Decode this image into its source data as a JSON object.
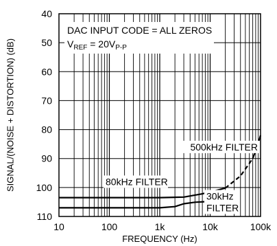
{
  "chart_data": {
    "type": "line",
    "xlabel": "FREQUENCY (Hz)",
    "ylabel": "SIGNAL/(NOISE + DISTORTION) (dB)",
    "x_scale": "log",
    "xlim": [
      10,
      100000
    ],
    "ylim": [
      110,
      40
    ],
    "y_inverted": true,
    "grid": true,
    "x_tick_labels": [
      "10",
      "100",
      "1k",
      "10k",
      "100k"
    ],
    "x_tick_values": [
      10,
      100,
      1000,
      10000,
      100000
    ],
    "y_tick_values": [
      40,
      50,
      60,
      70,
      80,
      90,
      100,
      110
    ],
    "annotations": {
      "code_text": "DAC INPUT CODE = ALL ZEROS",
      "vref_prefix": "V",
      "vref_sub": "REF",
      "vref_eq": " = 20V",
      "vref_suffix_sub": "P-P"
    },
    "series": [
      {
        "name": "80kHz FILTER",
        "color": "#000000",
        "style": "solid",
        "points": [
          [
            10,
            103.5
          ],
          [
            100,
            103.5
          ],
          [
            1000,
            103.5
          ],
          [
            3000,
            103.3
          ],
          [
            7000,
            102.2
          ],
          [
            12000,
            101.2
          ],
          [
            20000,
            100.2
          ]
        ]
      },
      {
        "name": "500kHz FILTER",
        "color": "#000000",
        "style": "dashed",
        "points": [
          [
            20000,
            100.2
          ],
          [
            40000,
            96
          ],
          [
            70000,
            90
          ]
        ]
      },
      {
        "name": "500kHz FILTER (upper)",
        "color": "#000000",
        "style": "solid",
        "points": [
          [
            70000,
            90
          ],
          [
            85000,
            86
          ],
          [
            100000,
            82
          ]
        ]
      },
      {
        "name": "30kHz FILTER",
        "color": "#000000",
        "style": "solid",
        "points": [
          [
            10,
            107
          ],
          [
            100,
            107
          ],
          [
            1000,
            107
          ],
          [
            2000,
            106.6
          ],
          [
            3000,
            105.6
          ],
          [
            5000,
            105.1
          ],
          [
            8000,
            104.9
          ]
        ]
      }
    ],
    "labels": {
      "f500": "500kHz FILTER",
      "f80": "80kHz FILTER",
      "f30a": "30kHz",
      "f30b": "FILTER"
    }
  }
}
